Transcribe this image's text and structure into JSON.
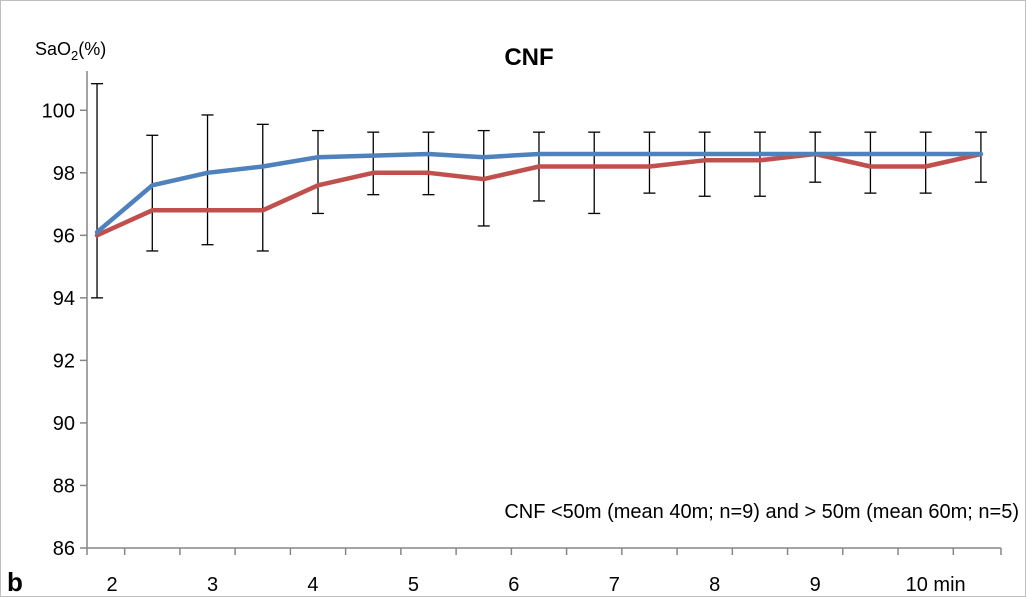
{
  "chart_data": {
    "type": "line",
    "title": "CNF",
    "ylabel_main": "SaO",
    "ylabel_sub": "2",
    "ylabel_suffix": "(%)",
    "panel_label": "b",
    "annotation": "CNF <50m (mean 40m; n=9) and > 50m (mean 60m; n=5)",
    "ylim": [
      86,
      101
    ],
    "yticks": [
      86,
      88,
      90,
      92,
      94,
      96,
      98,
      100
    ],
    "xlim": [
      1.75,
      10.85
    ],
    "xtick_labels": [
      {
        "x": 2,
        "label": "2"
      },
      {
        "x": 3,
        "label": "3"
      },
      {
        "x": 4,
        "label": "4"
      },
      {
        "x": 5,
        "label": "5"
      },
      {
        "x": 6,
        "label": "6"
      },
      {
        "x": 7,
        "label": "7"
      },
      {
        "x": 8,
        "label": "8"
      },
      {
        "x": 9,
        "label": "9"
      },
      {
        "x": 10,
        "label": "10 min"
      }
    ],
    "x": [
      1.85,
      2.4,
      2.95,
      3.5,
      4.05,
      4.6,
      5.15,
      5.7,
      6.25,
      6.8,
      7.35,
      7.9,
      8.45,
      9.0,
      9.55,
      10.1,
      10.65
    ],
    "series": [
      {
        "color": "#4f81bd",
        "values": [
          96.1,
          97.6,
          98.0,
          98.2,
          98.5,
          98.55,
          98.6,
          98.5,
          98.6,
          98.6,
          98.6,
          98.6,
          98.6,
          98.6,
          98.6,
          98.6,
          98.6
        ],
        "error_upper": [
          100.85,
          99.2,
          99.85,
          99.55,
          99.35,
          99.3,
          99.3,
          99.35,
          99.3,
          99.3,
          99.3,
          99.3,
          99.3,
          99.3,
          99.3,
          99.3,
          99.3
        ]
      },
      {
        "color": "#c0504d",
        "values": [
          96.0,
          96.8,
          96.8,
          96.8,
          97.6,
          98.0,
          98.0,
          97.8,
          98.2,
          98.2,
          98.2,
          98.4,
          98.4,
          98.6,
          98.2,
          98.2,
          98.6
        ],
        "error_lower": [
          94.0,
          95.5,
          95.7,
          95.5,
          96.7,
          97.3,
          97.3,
          96.3,
          97.1,
          96.7,
          97.35,
          97.25,
          97.25,
          97.7,
          97.35,
          97.35,
          97.7
        ]
      }
    ]
  }
}
